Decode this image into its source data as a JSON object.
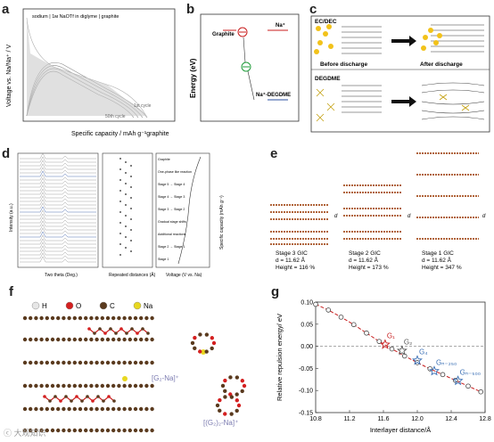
{
  "panels": {
    "a": {
      "label": "a",
      "header": "sodium | 1ᴍ NaOTf in diglyme | graphite",
      "ylabel": "Voltage vs. Na/Na⁺ / V",
      "xlabel": "Specific capacity / mAh g⁻¹graphite",
      "annotation_first": "1st cycle",
      "annotation_last": "50th cycle"
    },
    "b": {
      "label": "b",
      "ylabel": "Energy (eV)",
      "graphite": "Graphite",
      "na_plus": "Na⁺",
      "na_degdme": "Na⁺-DEGDME"
    },
    "c": {
      "label": "c",
      "ecdec": "EC/DEC",
      "degdme": "DEGDME",
      "before": "Before discharge",
      "after": "After discharge"
    },
    "d": {
      "label": "d",
      "ylabel": "Intensity (a.u.)",
      "xlabel1": "Two theta (Deg.)",
      "xlabel2": "Repeated distances (Å)",
      "xlabel3": "Voltage (V vs. Na)",
      "ylabel_right": "Specific capacity (mAh g⁻¹)",
      "stages": [
        "Graphite",
        "One-phase like reaction",
        "Stage 5 → Stage 4",
        "Stage 4 → Stage 3",
        "Stage 3 → Stage 2",
        "Gradual stage shifts",
        "Additional reactions",
        "Stage 2 → Stage 1",
        "Stage 1"
      ]
    },
    "e": {
      "label": "e",
      "stages": [
        {
          "title": "Stage 3 GIC",
          "d": "d = 11.62 Å",
          "height": "Height = 116 %"
        },
        {
          "title": "Stage 2 GIC",
          "d": "d = 11.62 Å",
          "height": "Height = 173 %"
        },
        {
          "title": "Stage 1 GIC",
          "d": "d = 11.62 Å",
          "height": "Height = 347 %"
        }
      ],
      "d_symbol": "d"
    },
    "f": {
      "label": "f",
      "legend": [
        {
          "name": "H",
          "color": "#e6e6e6"
        },
        {
          "name": "O",
          "color": "#d42020"
        },
        {
          "name": "C",
          "color": "#5a3a1e"
        },
        {
          "name": "Na",
          "color": "#e8d820"
        }
      ],
      "complex1": "[G₂-Na]⁺",
      "complex2": "[(G₂)₂-Na]⁺"
    },
    "g": {
      "label": "g"
    }
  },
  "chart_data": {
    "type": "scatter",
    "xlabel": "Interlayer distance/Å",
    "ylabel": "Relative repulsion energy/ eV",
    "xlim": [
      10.8,
      12.8
    ],
    "ylim": [
      -0.15,
      0.1
    ],
    "xticks": [
      "10.8",
      "11.2",
      "11.6",
      "12.0",
      "12.4",
      "12.8"
    ],
    "yticks": [
      "0.10",
      "0.05",
      "0.00",
      "-0.05",
      "-0.10",
      "-0.15"
    ],
    "series": [
      {
        "points": [
          {
            "x": 10.8,
            "y": 0.095
          },
          {
            "x": 10.95,
            "y": 0.082
          },
          {
            "x": 11.1,
            "y": 0.066
          },
          {
            "x": 11.25,
            "y": 0.049
          },
          {
            "x": 11.4,
            "y": 0.03
          },
          {
            "x": 11.55,
            "y": 0.011
          },
          {
            "x": 11.7,
            "y": -0.006
          },
          {
            "x": 11.85,
            "y": -0.022
          },
          {
            "x": 12.0,
            "y": -0.037
          },
          {
            "x": 12.15,
            "y": -0.051
          },
          {
            "x": 12.3,
            "y": -0.064
          },
          {
            "x": 12.45,
            "y": -0.077
          },
          {
            "x": 12.6,
            "y": -0.09
          },
          {
            "x": 12.75,
            "y": -0.103
          }
        ]
      }
    ],
    "annotations": [
      {
        "label": "G₁",
        "x": 11.62,
        "y": 0.004,
        "color": "#c81e1e"
      },
      {
        "label": "G₂",
        "x": 11.82,
        "y": -0.01,
        "color": "#555555"
      },
      {
        "label": "G₄",
        "x": 12.0,
        "y": -0.032,
        "color": "#3a6fb5"
      },
      {
        "label": "Gₙ₋₂₅₀",
        "x": 12.2,
        "y": -0.056,
        "color": "#3a6fb5"
      },
      {
        "label": "Gₙ₋₅₀₀",
        "x": 12.48,
        "y": -0.078,
        "color": "#3a6fb5"
      }
    ]
  },
  "watermark": "ⓒ 大观知识"
}
